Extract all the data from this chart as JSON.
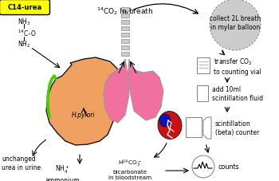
{
  "bg_color": "#ffffff",
  "stomach_color": "#f0a060",
  "stomach_edge": "#000000",
  "lung_color": "#f070a0",
  "lung_edge": "#999999",
  "trachea_color": "#bbbbbb",
  "balloon_color": "#cccccc",
  "balloon_edge": "#888888",
  "heart_red": "#cc1111",
  "heart_blue": "#1111bb",
  "label_c14urea_bg": "#ffff00",
  "label_c14urea_edge": "#000000",
  "green_line": "#44cc00",
  "texts": {
    "c14urea": "C14-urea",
    "co2_breath": "$^{14}$CO$_2$ In breath",
    "collect": "collect 2L breath\nin mylar balloon",
    "transfer": "transfer CO$_2$\nto counting vial",
    "add10ml": "add 10ml\nscintillation fluid",
    "scintillation": "scintillation\n(beta) counter",
    "counts": "counts",
    "hpylori": "H.pylori",
    "unchanged": "unchanged\nurea in urine",
    "ammonium": "NH$_4^+$\nammonium",
    "bicarbonate": "H$^{14}$CO$_3^-$\nbicarbonate\nin bloodstream",
    "nh3_top": "NH$_3$",
    "nh2_bot": "NH$_2$",
    "c14co": "$^{14}$C–O"
  }
}
